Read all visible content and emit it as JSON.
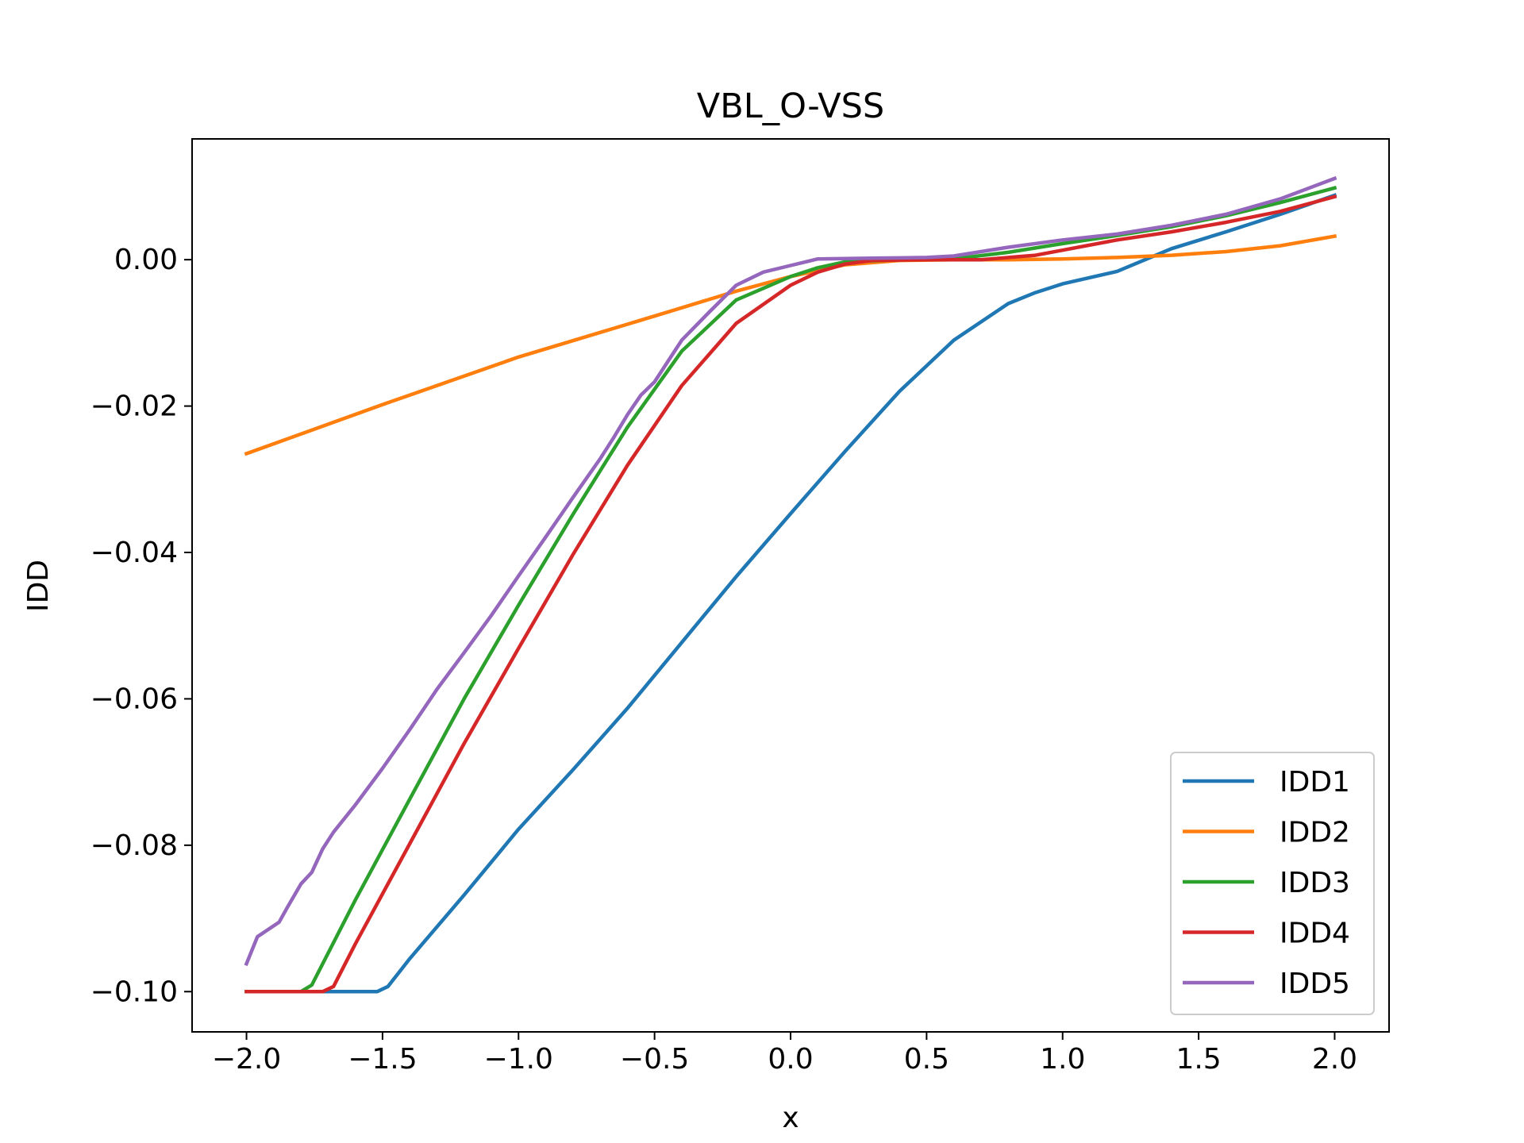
{
  "chart_data": {
    "type": "line",
    "title": "VBL_O-VSS",
    "xlabel": "x",
    "ylabel": "IDD",
    "xlim": [
      -2.2,
      2.2
    ],
    "ylim": [
      -0.1055,
      0.0165
    ],
    "x_ticks": [
      -2.0,
      -1.5,
      -1.0,
      -0.5,
      0.0,
      0.5,
      1.0,
      1.5,
      2.0
    ],
    "x_tick_labels": [
      "−2.0",
      "−1.5",
      "−1.0",
      "−0.5",
      "0.0",
      "0.5",
      "1.0",
      "1.5",
      "2.0"
    ],
    "y_ticks": [
      -0.1,
      -0.08,
      -0.06,
      -0.04,
      -0.02,
      0.0
    ],
    "y_tick_labels": [
      "−0.10",
      "−0.08",
      "−0.06",
      "−0.04",
      "−0.02",
      "0.00"
    ],
    "grid": false,
    "legend_position": "lower-right",
    "series": [
      {
        "name": "IDD1",
        "color": "#1f77b4",
        "points": [
          [
            -2.0,
            -0.1
          ],
          [
            -1.52,
            -0.1
          ],
          [
            -1.48,
            -0.0993
          ],
          [
            -1.4,
            -0.0955
          ],
          [
            -1.2,
            -0.0868
          ],
          [
            -1.0,
            -0.0778
          ],
          [
            -0.8,
            -0.0697
          ],
          [
            -0.6,
            -0.0613
          ],
          [
            -0.4,
            -0.0523
          ],
          [
            -0.2,
            -0.0433
          ],
          [
            0.0,
            -0.0347
          ],
          [
            0.2,
            -0.0262
          ],
          [
            0.4,
            -0.018
          ],
          [
            0.6,
            -0.011
          ],
          [
            0.8,
            -0.006
          ],
          [
            0.9,
            -0.0045
          ],
          [
            1.0,
            -0.0033
          ],
          [
            1.2,
            -0.0016
          ],
          [
            1.4,
            0.0015
          ],
          [
            1.6,
            0.0038
          ],
          [
            1.8,
            0.0062
          ],
          [
            2.0,
            0.0088
          ]
        ]
      },
      {
        "name": "IDD2",
        "color": "#ff7f0e",
        "points": [
          [
            -2.0,
            -0.0265
          ],
          [
            -1.5,
            -0.0198
          ],
          [
            -1.0,
            -0.0133
          ],
          [
            -0.5,
            -0.0077
          ],
          [
            -0.2,
            -0.0043
          ],
          [
            0.0,
            -0.0023
          ],
          [
            0.2,
            -0.0007
          ],
          [
            0.4,
            -0.0001
          ],
          [
            0.6,
            0.0
          ],
          [
            0.8,
            0.0
          ],
          [
            1.0,
            0.0001
          ],
          [
            1.2,
            0.0003
          ],
          [
            1.4,
            0.0006
          ],
          [
            1.6,
            0.0011
          ],
          [
            1.8,
            0.0019
          ],
          [
            2.0,
            0.0032
          ]
        ]
      },
      {
        "name": "IDD3",
        "color": "#2ca02c",
        "points": [
          [
            -2.0,
            -0.1
          ],
          [
            -1.8,
            -0.1
          ],
          [
            -1.76,
            -0.0991
          ],
          [
            -1.6,
            -0.0875
          ],
          [
            -1.4,
            -0.0737
          ],
          [
            -1.2,
            -0.06
          ],
          [
            -1.0,
            -0.0472
          ],
          [
            -0.8,
            -0.0348
          ],
          [
            -0.6,
            -0.0229
          ],
          [
            -0.4,
            -0.0125
          ],
          [
            -0.2,
            -0.0055
          ],
          [
            0.0,
            -0.0023
          ],
          [
            0.1,
            -0.0011
          ],
          [
            0.2,
            -0.0003
          ],
          [
            0.4,
            0.0
          ],
          [
            0.6,
            0.0001
          ],
          [
            0.8,
            0.001
          ],
          [
            1.0,
            0.0022
          ],
          [
            1.2,
            0.0033
          ],
          [
            1.4,
            0.0045
          ],
          [
            1.6,
            0.006
          ],
          [
            1.8,
            0.0078
          ],
          [
            2.0,
            0.0098
          ]
        ]
      },
      {
        "name": "IDD4",
        "color": "#d62728",
        "points": [
          [
            -2.0,
            -0.1
          ],
          [
            -1.72,
            -0.1
          ],
          [
            -1.68,
            -0.0993
          ],
          [
            -1.6,
            -0.0935
          ],
          [
            -1.4,
            -0.0798
          ],
          [
            -1.2,
            -0.0661
          ],
          [
            -1.0,
            -0.0531
          ],
          [
            -0.8,
            -0.0403
          ],
          [
            -0.6,
            -0.0281
          ],
          [
            -0.4,
            -0.0172
          ],
          [
            -0.2,
            -0.0087
          ],
          [
            0.0,
            -0.0035
          ],
          [
            0.1,
            -0.0017
          ],
          [
            0.2,
            -0.0006
          ],
          [
            0.3,
            -0.0001
          ],
          [
            0.5,
            0.0
          ],
          [
            0.7,
            0.0
          ],
          [
            0.9,
            0.0006
          ],
          [
            1.0,
            0.0013
          ],
          [
            1.2,
            0.0027
          ],
          [
            1.4,
            0.0038
          ],
          [
            1.6,
            0.0051
          ],
          [
            1.8,
            0.0066
          ],
          [
            2.0,
            0.0086
          ]
        ]
      },
      {
        "name": "IDD5",
        "color": "#9467bd",
        "points": [
          [
            -2.0,
            -0.0962
          ],
          [
            -1.96,
            -0.0925
          ],
          [
            -1.88,
            -0.0905
          ],
          [
            -1.85,
            -0.0885
          ],
          [
            -1.8,
            -0.0853
          ],
          [
            -1.76,
            -0.0837
          ],
          [
            -1.72,
            -0.0805
          ],
          [
            -1.68,
            -0.0782
          ],
          [
            -1.6,
            -0.0745
          ],
          [
            -1.5,
            -0.0695
          ],
          [
            -1.4,
            -0.0642
          ],
          [
            -1.3,
            -0.0587
          ],
          [
            -1.2,
            -0.0537
          ],
          [
            -1.1,
            -0.0486
          ],
          [
            -1.0,
            -0.0432
          ],
          [
            -0.9,
            -0.0379
          ],
          [
            -0.8,
            -0.0325
          ],
          [
            -0.7,
            -0.0272
          ],
          [
            -0.65,
            -0.0243
          ],
          [
            -0.6,
            -0.0212
          ],
          [
            -0.55,
            -0.0185
          ],
          [
            -0.5,
            -0.0167
          ],
          [
            -0.4,
            -0.011
          ],
          [
            -0.3,
            -0.0072
          ],
          [
            -0.2,
            -0.0035
          ],
          [
            -0.1,
            -0.0017
          ],
          [
            0.0,
            -0.0008
          ],
          [
            0.1,
            0.0001
          ],
          [
            0.3,
            0.0002
          ],
          [
            0.5,
            0.0003
          ],
          [
            0.6,
            0.0005
          ],
          [
            0.8,
            0.0017
          ],
          [
            1.0,
            0.0027
          ],
          [
            1.2,
            0.0035
          ],
          [
            1.4,
            0.0047
          ],
          [
            1.6,
            0.0062
          ],
          [
            1.8,
            0.0083
          ],
          [
            2.0,
            0.0111
          ]
        ]
      }
    ]
  }
}
